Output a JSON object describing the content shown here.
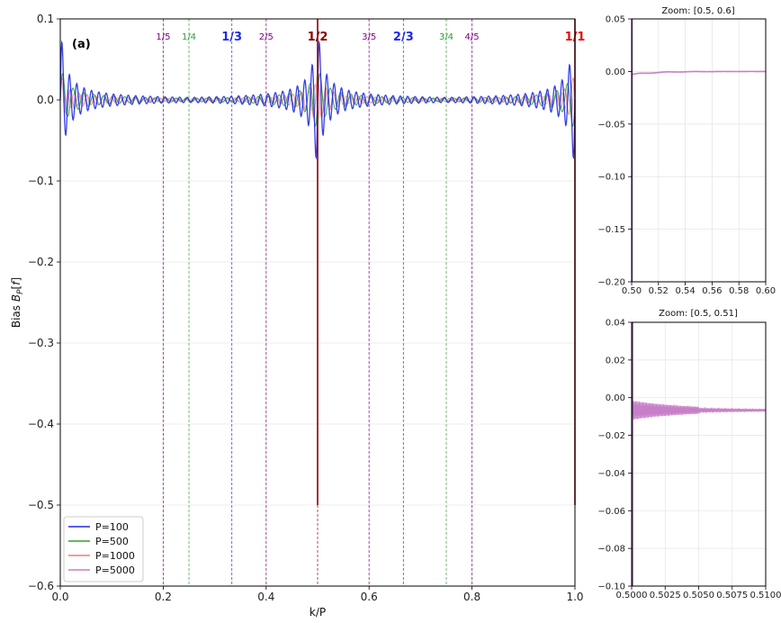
{
  "colors": {
    "p100": "#1f2be6",
    "p500": "#2ca02c",
    "p1000": "#f07878",
    "p5000": "#c77fc7",
    "half_line": "#8b0000",
    "one_line": "#e01010",
    "third_line": "#1f2be6",
    "quarter_line": "#2ca02c",
    "fifth_line": "#800080",
    "grid": "#e6e6e6"
  },
  "chart_data": [
    {
      "type": "line",
      "panel_label": "(a)",
      "xlabel": "k/P",
      "ylabel": "Bias B_P[f]",
      "xlim": [
        0,
        1
      ],
      "ylim": [
        -0.6,
        0.1
      ],
      "x_ticks": [
        "0.0",
        "0.2",
        "0.4",
        "0.6",
        "0.8",
        "1.0"
      ],
      "y_ticks": [
        "−0.6",
        "−0.5",
        "−0.4",
        "−0.3",
        "−0.2",
        "−0.1",
        "0.0",
        "0.1"
      ],
      "grid": true,
      "legend_position": "lower-left",
      "series": [
        {
          "name": "P=100",
          "color_key": "p100"
        },
        {
          "name": "P=500",
          "color_key": "p500"
        },
        {
          "name": "P=1000",
          "color_key": "p1000"
        },
        {
          "name": "P=5000",
          "color_key": "p5000"
        }
      ],
      "markers": [
        {
          "x": 0.2,
          "label": "1/5",
          "color_key": "fifth_line",
          "bold": false
        },
        {
          "x": 0.25,
          "label": "1/4",
          "color_key": "quarter_line",
          "bold": false
        },
        {
          "x": 0.3333,
          "label": "1/3",
          "color_key": "third_line",
          "bold": true
        },
        {
          "x": 0.4,
          "label": "2/5",
          "color_key": "fifth_line",
          "bold": false
        },
        {
          "x": 0.5,
          "label": "1/2",
          "color_key": "half_line",
          "bold": true
        },
        {
          "x": 0.6,
          "label": "3/5",
          "color_key": "fifth_line",
          "bold": false
        },
        {
          "x": 0.6667,
          "label": "2/3",
          "color_key": "third_line",
          "bold": true
        },
        {
          "x": 0.75,
          "label": "3/4",
          "color_key": "quarter_line",
          "bold": false
        },
        {
          "x": 0.8,
          "label": "4/5",
          "color_key": "fifth_line",
          "bold": false
        },
        {
          "x": 1.0,
          "label": "1/1",
          "color_key": "one_line",
          "bold": true
        }
      ]
    },
    {
      "type": "line",
      "title": "Zoom: [0.5, 0.6]",
      "xlim": [
        0.5,
        0.6
      ],
      "ylim": [
        -0.2,
        0.05
      ],
      "x_ticks": [
        "0.50",
        "0.52",
        "0.54",
        "0.56",
        "0.58",
        "0.60"
      ],
      "y_ticks": [
        "−0.20",
        "−0.15",
        "−0.10",
        "−0.05",
        "0.00",
        "0.05"
      ],
      "grid": true,
      "series_color_key": "p5000"
    },
    {
      "type": "line",
      "title": "Zoom: [0.5, 0.51]",
      "xlim": [
        0.5,
        0.51
      ],
      "ylim": [
        -0.1,
        0.05
      ],
      "x_ticks": [
        "0.5000",
        "0.5025",
        "0.5050",
        "0.5075",
        "0.5100"
      ],
      "y_ticks": [
        "−0.10",
        "−0.08",
        "−0.06",
        "−0.04",
        "−0.02",
        "0.00",
        "0.02",
        "0.04"
      ],
      "grid": true,
      "series_color_key": "p5000"
    }
  ]
}
